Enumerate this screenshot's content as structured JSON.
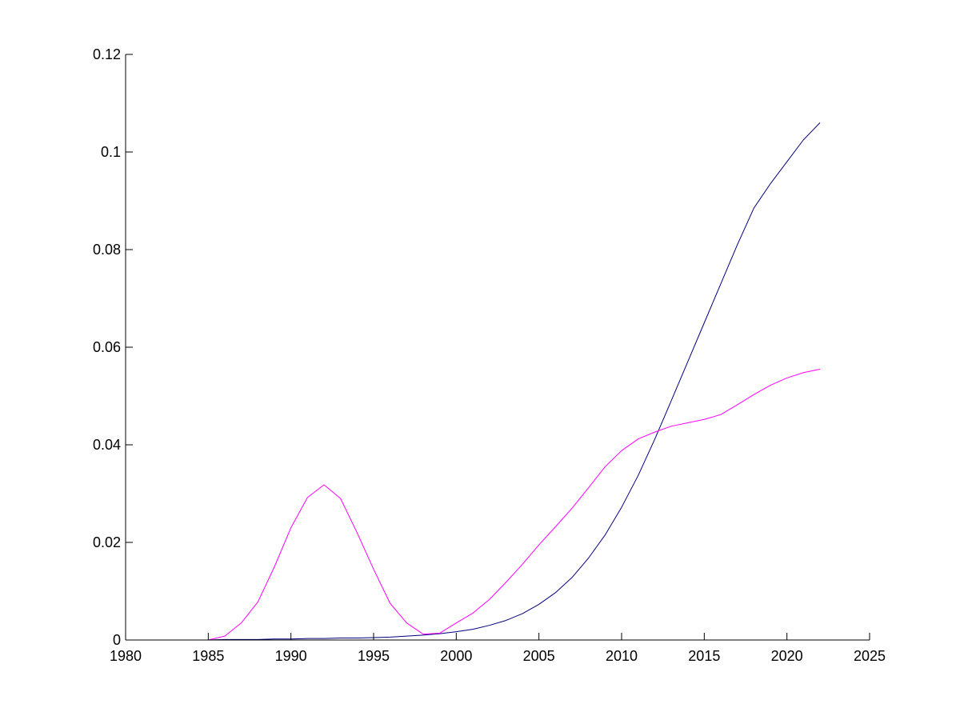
{
  "chart_data": {
    "type": "line",
    "title": "",
    "xlabel": "",
    "ylabel": "",
    "xlim": [
      1980,
      2025
    ],
    "ylim": [
      0,
      0.12
    ],
    "grid": false,
    "legend": "none",
    "x_ticks": [
      1980,
      1985,
      1990,
      1995,
      2000,
      2005,
      2010,
      2015,
      2020,
      2025
    ],
    "x_tick_labels": [
      "1980",
      "1985",
      "1990",
      "1995",
      "2000",
      "2005",
      "2010",
      "2015",
      "2020",
      "2025"
    ],
    "y_ticks": [
      0,
      0.02,
      0.04,
      0.06,
      0.08,
      0.1,
      0.12
    ],
    "y_tick_labels": [
      "0",
      "0.02",
      "0.04",
      "0.06",
      "0.08",
      "0.1",
      "0.12"
    ],
    "x": [
      1980,
      1981,
      1982,
      1983,
      1984,
      1985,
      1986,
      1987,
      1988,
      1989,
      1990,
      1991,
      1992,
      1993,
      1994,
      1995,
      1996,
      1997,
      1998,
      1999,
      2000,
      2001,
      2002,
      2003,
      2004,
      2005,
      2006,
      2007,
      2008,
      2009,
      2010,
      2011,
      2012,
      2013,
      2014,
      2015,
      2016,
      2017,
      2018,
      2019,
      2020,
      2021,
      2022
    ],
    "series": [
      {
        "color": "#00007f",
        "values": [
          0,
          0,
          0,
          0,
          0,
          0,
          0.0001,
          0.0001,
          0.0001,
          0.0002,
          0.0002,
          0.0003,
          0.0003,
          0.0004,
          0.0004,
          0.0005,
          0.0006,
          0.0008,
          0.001,
          0.0013,
          0.0017,
          0.0022,
          0.003,
          0.004,
          0.0054,
          0.0073,
          0.0097,
          0.0128,
          0.0168,
          0.0215,
          0.0272,
          0.0337,
          0.0411,
          0.049,
          0.057,
          0.065,
          0.073,
          0.081,
          0.0885,
          0.0935,
          0.098,
          0.1025,
          0.106
        ]
      },
      {
        "color": "#ff00ff",
        "values": [
          0,
          0,
          0,
          0,
          0,
          0,
          0.0008,
          0.0035,
          0.0078,
          0.015,
          0.023,
          0.0292,
          0.0318,
          0.029,
          0.022,
          0.0145,
          0.0075,
          0.0035,
          0.0012,
          0.0014,
          0.0035,
          0.0055,
          0.0083,
          0.0118,
          0.0155,
          0.0195,
          0.0232,
          0.027,
          0.0312,
          0.0355,
          0.0388,
          0.0412,
          0.0426,
          0.0438,
          0.0445,
          0.0452,
          0.0462,
          0.0482,
          0.0503,
          0.0522,
          0.0537,
          0.0548,
          0.0555
        ]
      }
    ]
  }
}
